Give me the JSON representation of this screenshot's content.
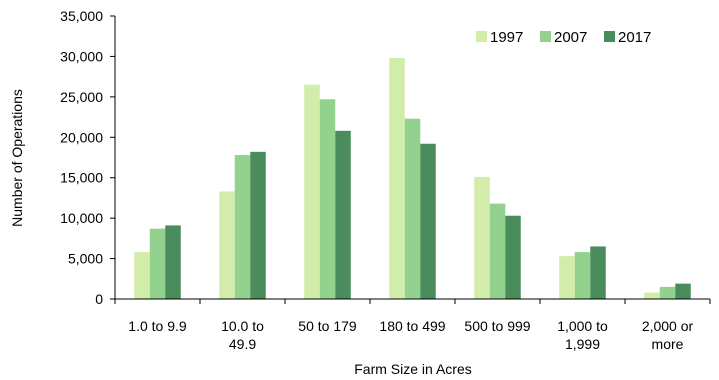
{
  "chart_data": {
    "type": "bar",
    "title": "",
    "xlabel": "Farm Size in Acres",
    "ylabel": "Number of Operations",
    "ylim": [
      0,
      35000
    ],
    "ytick_step": 5000,
    "yticks": [
      "0",
      "5,000",
      "10,000",
      "15,000",
      "20,000",
      "25,000",
      "30,000",
      "35,000"
    ],
    "grid": false,
    "legend_position": "top-right",
    "categories": [
      [
        "1.0 to 9.9"
      ],
      [
        "10.0 to",
        "49.9"
      ],
      [
        "50 to 179"
      ],
      [
        "180 to 499"
      ],
      [
        "500 to 999"
      ],
      [
        "1,000 to",
        "1,999"
      ],
      [
        "2,000 or",
        "more"
      ]
    ],
    "series": [
      {
        "name": "1997",
        "color": "#d2ecaa",
        "values": [
          5800,
          13300,
          26500,
          29800,
          15100,
          5300,
          800
        ]
      },
      {
        "name": "2007",
        "color": "#93d28e",
        "values": [
          8700,
          17800,
          24700,
          22300,
          11800,
          5800,
          1500
        ]
      },
      {
        "name": "2017",
        "color": "#4a8c5c",
        "values": [
          9100,
          18200,
          20800,
          19200,
          10300,
          6500,
          1900
        ]
      }
    ]
  }
}
